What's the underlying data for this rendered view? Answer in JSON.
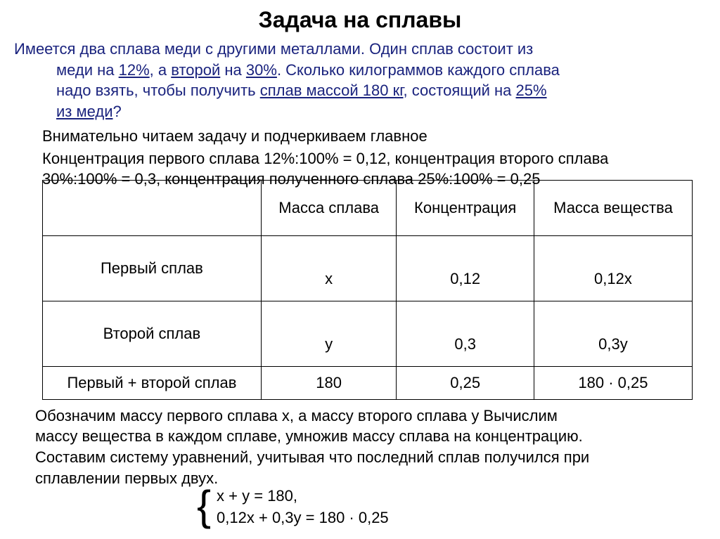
{
  "title": "Задача на сплавы",
  "problem": {
    "line1_a": "Имеется два сплава меди с другими металлами. Один сплав состоит из",
    "line2_a": "меди на ",
    "pct1": "12%",
    "line2_b": ", а ",
    "second": "второй",
    "line2_c": " на ",
    "pct2": "30%",
    "line2_d": ". Сколько килограммов каждого сплава",
    "line3_a": "надо взять, чтобы получить ",
    "mass": "сплав массой 180 кг",
    "line3_b": ", состоящий на ",
    "pct3": "25%",
    "line4_a": "из меди",
    "line4_b": "?"
  },
  "overlap": "Внимательно читаем задачу и подчеркиваем главное",
  "conc_line1": "Концентрация первого сплава 12%:100% = 0,12, концентрация второго сплава",
  "conc_line2": "30%:100% = 0,3, концентрация полученного сплава 25%:100% = 0,25",
  "table": {
    "headers": [
      "",
      "Масса сплава",
      "Концентрация",
      "Масса вещества"
    ],
    "rows": [
      {
        "label": "Первый сплав",
        "mass": "x",
        "conc": "0,12",
        "subst": "0,12x"
      },
      {
        "label": "Второй сплав",
        "mass": "y",
        "conc": "0,3",
        "subst": "0,3y"
      },
      {
        "label": "Первый + второй сплав",
        "mass": "180",
        "conc": "0,25",
        "subst": "180 · 0,25"
      }
    ]
  },
  "after": {
    "p1": "Обозначим массу первого сплава x, а массу второго сплава y   Вычислим",
    "p2": "массу вещества в каждом сплаве, умножив массу сплава на концентрацию.",
    "p3": "Составим систему уравнений, учитывая что последний сплав получился при",
    "p4": "сплавлении первых двух."
  },
  "equations": {
    "eq1": "x + y = 180,",
    "eq2": "0,12x + 0,3y = 180 · 0,25"
  },
  "colors": {
    "problem_text": "#1a237e",
    "body_text": "#000000",
    "background": "#ffffff",
    "border": "#000000"
  },
  "fontsize": {
    "title": 32,
    "body": 22
  }
}
